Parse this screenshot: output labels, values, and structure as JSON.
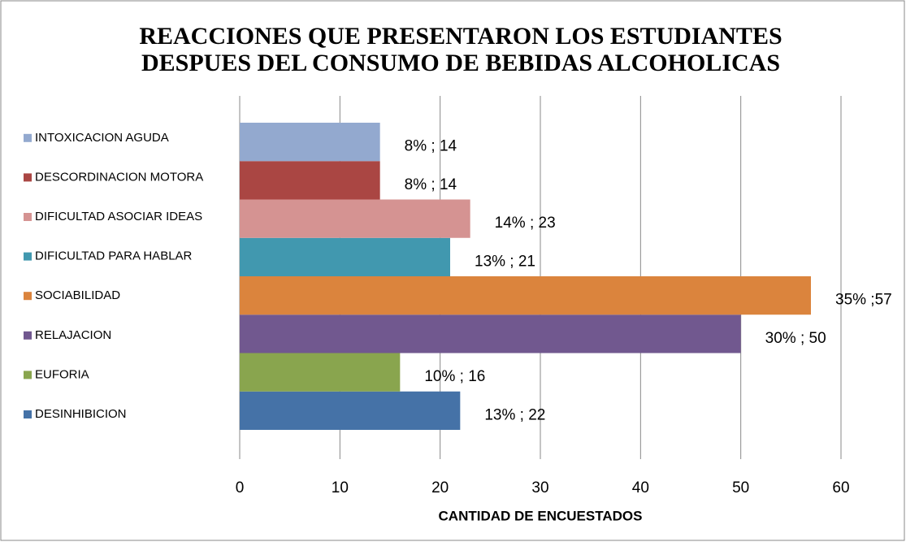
{
  "chart_data": {
    "type": "bar",
    "orientation": "horizontal",
    "title": "REACCIONES QUE PRESENTARON LOS ESTUDIANTES DESPUES DEL CONSUMO DE BEBIDAS ALCOHOLICAS",
    "xlabel": "CANTIDAD DE ENCUESTADOS",
    "xlim": [
      0,
      60
    ],
    "xticks": [
      0,
      10,
      20,
      30,
      40,
      50,
      60
    ],
    "grid": true,
    "legend": "left",
    "series": [
      {
        "name": "DESINHIBICION",
        "color": "#4572a7",
        "values": [
          22
        ],
        "value_labels": [
          "13% ; 22"
        ]
      },
      {
        "name": "EUFORIA",
        "color": "#89a54e",
        "values": [
          16
        ],
        "value_labels": [
          "10% ; 16"
        ]
      },
      {
        "name": "RELAJACION",
        "color": "#71588f",
        "values": [
          50
        ],
        "value_labels": [
          "30% ; 50"
        ]
      },
      {
        "name": "SOCIABILIDAD",
        "color": "#db843d",
        "values": [
          57
        ],
        "value_labels": [
          "35% ;57"
        ]
      },
      {
        "name": "DIFICULTAD PARA HABLAR",
        "color": "#4198af",
        "values": [
          21
        ],
        "value_labels": [
          "13% ; 21"
        ]
      },
      {
        "name": "DIFICULTAD ASOCIAR IDEAS",
        "color": "#d59392",
        "values": [
          23
        ],
        "value_labels": [
          "14% ; 23"
        ]
      },
      {
        "name": "DESCORDINACION MOTORA",
        "color": "#aa4643",
        "values": [
          14
        ],
        "value_labels": [
          "8% ; 14"
        ]
      },
      {
        "name": "INTOXICACION AGUDA",
        "color": "#93a9cf",
        "values": [
          14
        ],
        "value_labels": [
          "8% ; 14"
        ]
      }
    ]
  }
}
